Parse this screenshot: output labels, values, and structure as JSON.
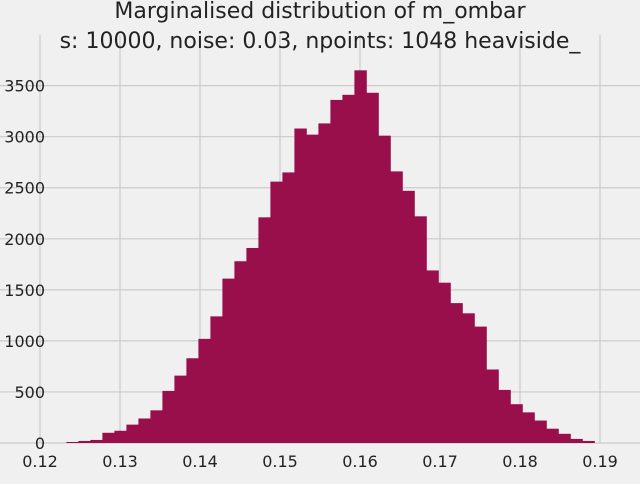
{
  "chart_data": {
    "type": "bar",
    "title": "Marginalised distribution of m_ombar",
    "subtitle": "s: 10000, noise: 0.03, npoints: 1048 heaviside_",
    "xlabel": "",
    "ylabel": "",
    "xlim": [
      0.115,
      0.195
    ],
    "ylim": [
      0,
      3800
    ],
    "x_ticks": [
      0.12,
      0.13,
      0.14,
      0.15,
      0.16,
      0.17,
      0.18,
      0.19
    ],
    "x_tick_labels": [
      "0.12",
      "0.13",
      "0.14",
      "0.15",
      "0.16",
      "0.17",
      "0.18",
      "0.19"
    ],
    "y_ticks": [
      0,
      500,
      1000,
      1500,
      2000,
      2500,
      3000,
      3500
    ],
    "y_tick_labels": [
      "0",
      "500",
      "1000",
      "1500",
      "2000",
      "2500",
      "3000",
      "3500"
    ],
    "grid": true,
    "bar_color": "#990f4b",
    "background_color": "#f0f0f0",
    "grid_color": "#cbcbcb",
    "bin_width": 0.0015,
    "bin_start": 0.1233,
    "values": [
      10,
      20,
      30,
      100,
      120,
      180,
      240,
      320,
      510,
      660,
      830,
      1020,
      1240,
      1610,
      1780,
      1910,
      2210,
      2560,
      2650,
      3080,
      3020,
      3130,
      3360,
      3410,
      3650,
      3430,
      3010,
      2660,
      2470,
      2220,
      1690,
      1570,
      1370,
      1270,
      1140,
      720,
      520,
      380,
      300,
      220,
      140,
      90,
      40,
      20
    ]
  }
}
